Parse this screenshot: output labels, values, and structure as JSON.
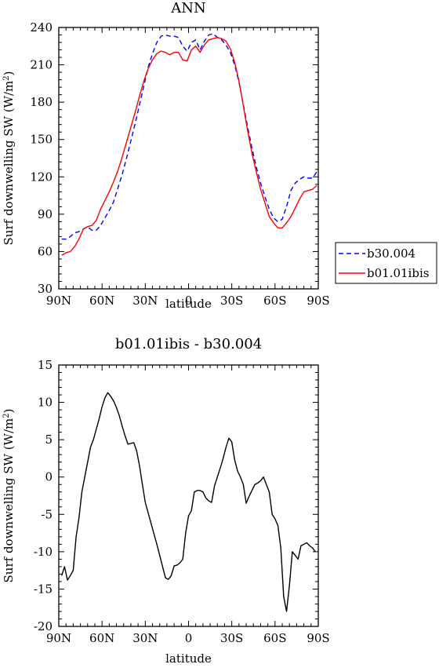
{
  "chart_data": [
    {
      "type": "line",
      "title": "ANN",
      "xlabel": "latitude",
      "ylabel": "Surf downwelling SW (W/m~S~2~N~)",
      "xlim": [
        90,
        -90
      ],
      "ylim": [
        30,
        240
      ],
      "xticks": [
        90,
        60,
        30,
        0,
        -30,
        -60,
        -90
      ],
      "xtick_labels": [
        "90N",
        "60N",
        "30N",
        "0",
        "30S",
        "60S",
        "90S"
      ],
      "yticks": [
        30,
        60,
        90,
        120,
        150,
        180,
        210,
        240
      ],
      "ytick_labels": [
        "30",
        "60",
        "90",
        "120",
        "150",
        "180",
        "210",
        "240"
      ],
      "grid": false,
      "legend": "right",
      "series": [
        {
          "name": "b30.004",
          "color": "#0000ff",
          "dash": "dashed",
          "x": [
            88,
            85,
            82,
            79,
            76,
            73,
            70,
            67,
            64,
            61,
            58,
            55,
            52,
            49,
            46,
            43,
            40,
            37,
            34,
            31,
            28,
            25,
            22,
            19,
            16,
            13,
            10,
            7,
            4,
            1,
            -2,
            -5,
            -8,
            -11,
            -14,
            -17,
            -20,
            -23,
            -26,
            -29,
            -32,
            -35,
            -38,
            -41,
            -44,
            -47,
            -50,
            -53,
            -56,
            -59,
            -62,
            -65,
            -68,
            -71,
            -74,
            -77,
            -80,
            -83,
            -86,
            -89
          ],
          "y": [
            70,
            70,
            72,
            75,
            76,
            78,
            80,
            77,
            77,
            81,
            87,
            93,
            100,
            111,
            122,
            135,
            149,
            163,
            178,
            193,
            208,
            219,
            228,
            233,
            234,
            233,
            233,
            232,
            225,
            221,
            228,
            230,
            222,
            229,
            234,
            235,
            232,
            230,
            226,
            220,
            210,
            196,
            178,
            160,
            143,
            128,
            115,
            104,
            94,
            87,
            84,
            86,
            96,
            109,
            115,
            118,
            120,
            119,
            119,
            124
          ]
        },
        {
          "name": "b01.01ibis",
          "color": "#ff0000",
          "dash": "solid",
          "x": [
            88,
            85,
            82,
            79,
            76,
            73,
            70,
            67,
            64,
            61,
            58,
            55,
            52,
            49,
            46,
            43,
            40,
            37,
            34,
            31,
            28,
            25,
            22,
            19,
            16,
            13,
            10,
            7,
            4,
            1,
            -2,
            -5,
            -8,
            -11,
            -14,
            -17,
            -20,
            -23,
            -26,
            -29,
            -32,
            -35,
            -38,
            -41,
            -44,
            -47,
            -50,
            -53,
            -56,
            -59,
            -62,
            -65,
            -68,
            -71,
            -74,
            -77,
            -80,
            -83,
            -86,
            -89
          ],
          "y": [
            57,
            59,
            60,
            64,
            70,
            78,
            80,
            81,
            85,
            94,
            101,
            108,
            116,
            125,
            136,
            148,
            160,
            172,
            185,
            197,
            207,
            214,
            219,
            221,
            220,
            218,
            220,
            220,
            214,
            213,
            222,
            225,
            220,
            226,
            230,
            231,
            232,
            231,
            229,
            223,
            212,
            197,
            177,
            157,
            139,
            124,
            110,
            99,
            88,
            83,
            79,
            79,
            83,
            88,
            95,
            102,
            108,
            109,
            110,
            113
          ]
        }
      ]
    },
    {
      "type": "line",
      "title": "b01.01ibis - b30.004",
      "xlabel": "latitude",
      "ylabel": "Surf downwelling SW (W/m~S~2~N~)",
      "xlim": [
        90,
        -90
      ],
      "ylim": [
        -20,
        15
      ],
      "xticks": [
        90,
        60,
        30,
        0,
        -30,
        -60,
        -90
      ],
      "xtick_labels": [
        "90N",
        "60N",
        "30N",
        "0",
        "30S",
        "60S",
        "90S"
      ],
      "yticks": [
        -20,
        -15,
        -10,
        -5,
        0,
        5,
        10,
        15
      ],
      "ytick_labels": [
        "-20",
        "-15",
        "-10",
        "-5",
        "0",
        "5",
        "10",
        "15"
      ],
      "grid": false,
      "series": [
        {
          "color": "#000000",
          "dash": "solid",
          "x": [
            88,
            86,
            84,
            82,
            80,
            78,
            76,
            74,
            72,
            70,
            68,
            66,
            64,
            62,
            60,
            58,
            56,
            54,
            52,
            50,
            48,
            46,
            44,
            42,
            40,
            38,
            36,
            34,
            32,
            30,
            28,
            26,
            24,
            22,
            20,
            18,
            16,
            14,
            12,
            10,
            8,
            6,
            4,
            2,
            0,
            -2,
            -4,
            -6,
            -8,
            -10,
            -12,
            -14,
            -16,
            -18,
            -20,
            -22,
            -24,
            -26,
            -28,
            -30,
            -32,
            -34,
            -36,
            -38,
            -40,
            -42,
            -44,
            -46,
            -48,
            -50,
            -52,
            -54,
            -56,
            -58,
            -60,
            -62,
            -64,
            -66,
            -68,
            -70,
            -72,
            -74,
            -76,
            -78,
            -80,
            -82,
            -84,
            -86,
            -88
          ],
          "y": [
            -13.2,
            -12.0,
            -13.8,
            -13.2,
            -12.5,
            -8.0,
            -5.5,
            -2.0,
            0.0,
            2.0,
            4.0,
            5.0,
            6.4,
            7.8,
            9.4,
            10.6,
            11.3,
            10.8,
            10.2,
            9.3,
            8.2,
            6.8,
            5.5,
            4.4,
            4.5,
            4.6,
            3.5,
            1.5,
            -1.0,
            -3.4,
            -4.8,
            -6.2,
            -7.6,
            -9.0,
            -10.5,
            -12.0,
            -13.5,
            -13.7,
            -13.2,
            -11.9,
            -11.8,
            -11.5,
            -11.0,
            -7.5,
            -5.2,
            -4.5,
            -2.0,
            -1.8,
            -1.8,
            -2.0,
            -2.8,
            -3.2,
            -3.4,
            -1.2,
            0.0,
            1.2,
            2.5,
            4.0,
            5.2,
            4.7,
            2.3,
            0.8,
            0.0,
            -1.0,
            -3.5,
            -2.6,
            -1.8,
            -1.0,
            -0.8,
            -0.5,
            0.0,
            -1.0,
            -2.0,
            -5.0,
            -5.6,
            -6.5,
            -9.5,
            -16.0,
            -18.0,
            -14.5,
            -10.0,
            -10.5,
            -11.0,
            -9.2,
            -9.0,
            -8.8,
            -9.2,
            -9.5,
            -10.0
          ]
        }
      ]
    }
  ]
}
